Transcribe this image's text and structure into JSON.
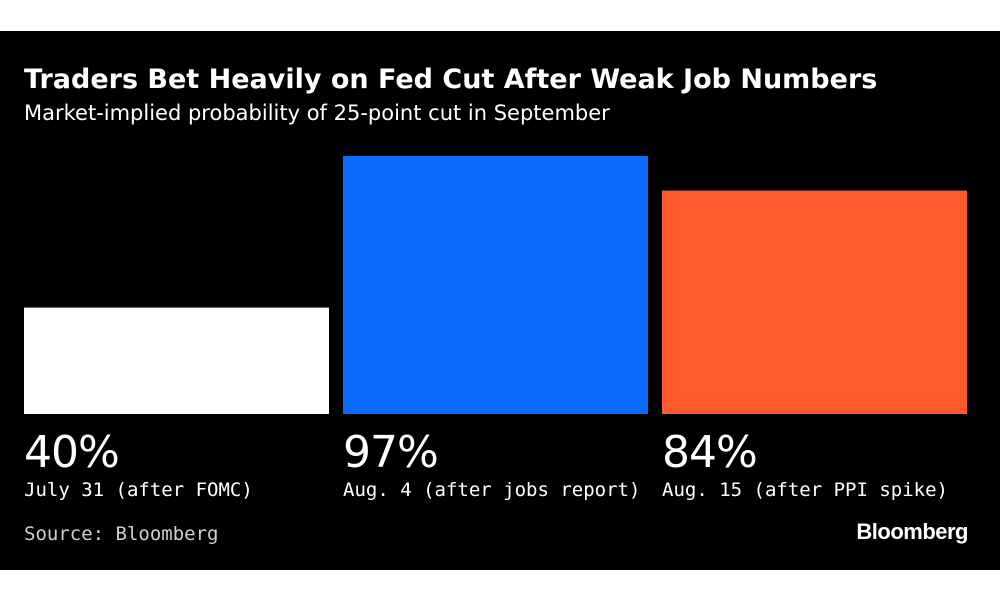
{
  "chart_data": {
    "type": "bar",
    "title": "Traders Bet Heavily on Fed Cut After Weak Job Numbers",
    "subtitle": "Market-implied probability of 25-point cut in September",
    "categories": [
      "July 31 (after FOMC)",
      "Aug. 4 (after jobs report)",
      "Aug. 15 (after PPI spike)"
    ],
    "values": [
      40,
      97,
      84
    ],
    "value_labels": [
      "40%",
      "97%",
      "84%"
    ],
    "bar_colors": [
      "#ffffff",
      "#0b6cff",
      "#ff5a2c"
    ],
    "ylim": [
      0,
      100
    ],
    "grid": false,
    "legend": "none"
  },
  "source": "Source: Bloomberg",
  "logo": "Bloomberg",
  "colors": {
    "background": "#000000",
    "text": "#ffffff"
  }
}
